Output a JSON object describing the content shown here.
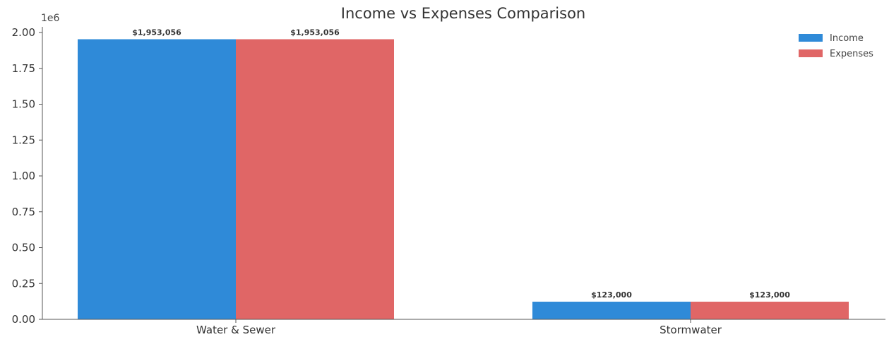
{
  "chart_data": {
    "type": "bar",
    "title": "Income vs Expenses Comparison",
    "xlabel": "",
    "ylabel": "",
    "axis_multiplier": "1e6",
    "categories": [
      "Water & Sewer",
      "Stormwater"
    ],
    "series": [
      {
        "name": "Income",
        "color": "#2f8ad8",
        "values": [
          1953056,
          123000
        ],
        "labels": [
          "$1,953,056",
          "$123,000"
        ]
      },
      {
        "name": "Expenses",
        "color": "#e06666",
        "values": [
          1953056,
          123000
        ],
        "labels": [
          "$1,953,056",
          "$123,000"
        ]
      }
    ],
    "ylim": [
      0,
      2000000
    ],
    "yticks": [
      0,
      250000,
      500000,
      750000,
      1000000,
      1250000,
      1500000,
      1750000,
      2000000
    ],
    "ytick_labels": [
      "0.00",
      "0.25",
      "0.50",
      "0.75",
      "1.00",
      "1.25",
      "1.50",
      "1.75",
      "2.00"
    ],
    "grid": false,
    "legend_position": "top-right"
  }
}
